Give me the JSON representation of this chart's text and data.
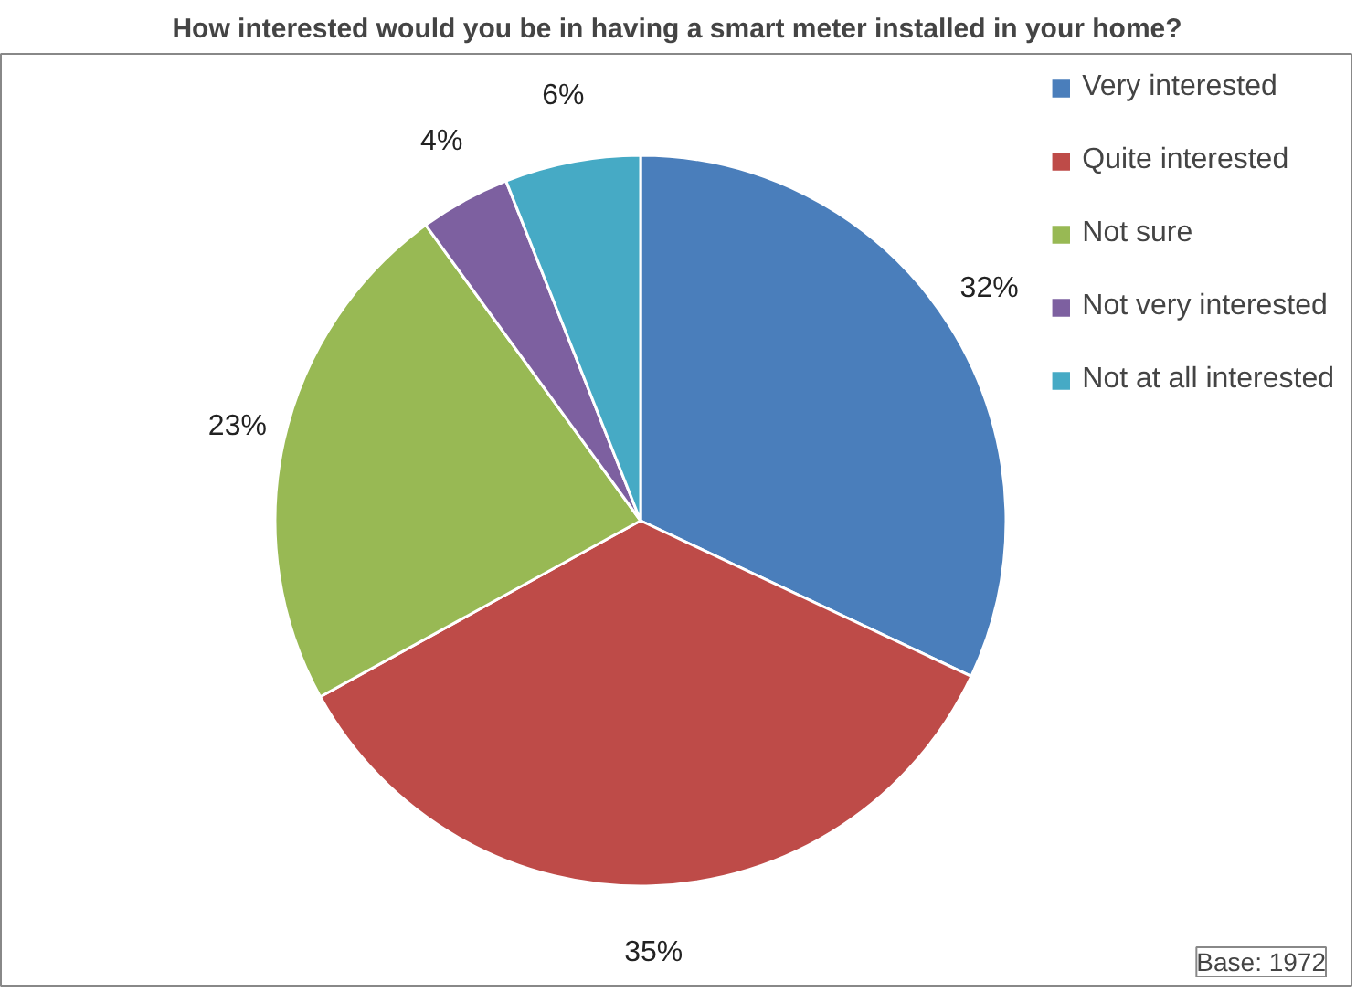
{
  "chart_data": {
    "type": "pie",
    "title": "How interested would you be in having a smart meter installed in your home?",
    "categories": [
      "Very interested",
      "Quite interested",
      "Not sure",
      "Not very interested",
      "Not at all interested"
    ],
    "values": [
      32,
      35,
      23,
      4,
      6
    ],
    "colors": [
      "#4a7ebb",
      "#be4b48",
      "#98b954",
      "#7d60a0",
      "#46aac5"
    ],
    "value_labels": [
      "32%",
      "35%",
      "23%",
      "4%",
      "6%"
    ],
    "legend": "top_right",
    "annotations": [
      "Base: 1972"
    ]
  }
}
